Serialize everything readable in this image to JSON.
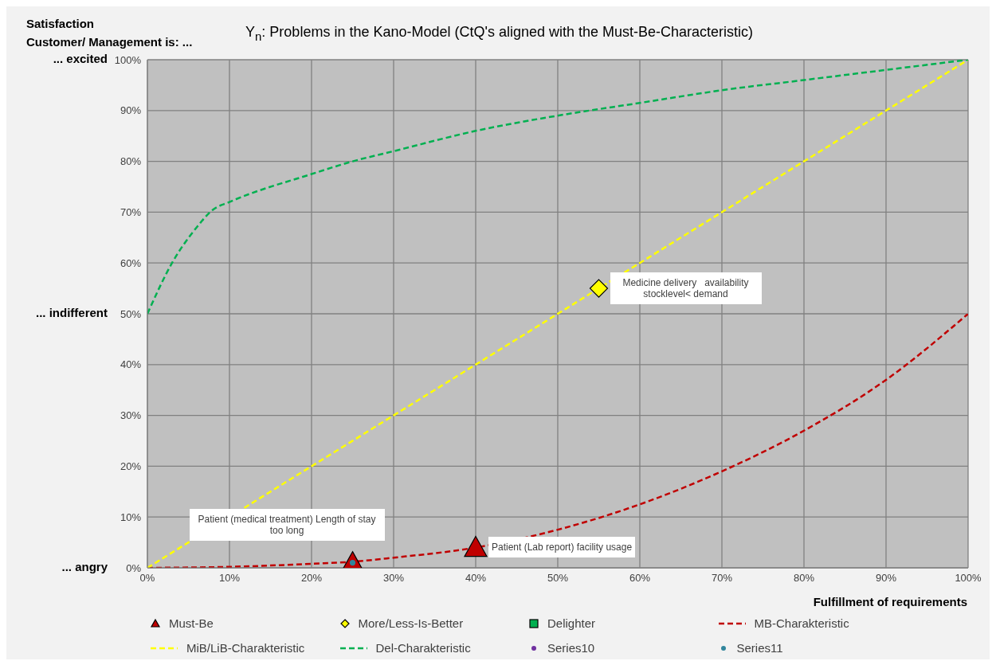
{
  "chart_data": {
    "type": "line",
    "title": "Y$_{n}$: Problems in the Kano-Model (CtQ's aligned with the Must-Be-Characteristic)",
    "ylabel": "Satisfaction\nCustomer/ Management is: ...",
    "xlabel": "Fulfillment of requirements",
    "xlim": [
      0,
      100
    ],
    "ylim": [
      0,
      100
    ],
    "xticks": [
      {
        "value": 0,
        "label": "0%"
      },
      {
        "value": 10,
        "label": "10%"
      },
      {
        "value": 20,
        "label": "20%"
      },
      {
        "value": 30,
        "label": "30%"
      },
      {
        "value": 40,
        "label": "40%"
      },
      {
        "value": 50,
        "label": "50%"
      },
      {
        "value": 60,
        "label": "60%"
      },
      {
        "value": 70,
        "label": "70%"
      },
      {
        "value": 80,
        "label": "80%"
      },
      {
        "value": 90,
        "label": "90%"
      },
      {
        "value": 100,
        "label": "100%"
      }
    ],
    "yticks": [
      {
        "value": 0,
        "label": "0%"
      },
      {
        "value": 10,
        "label": "10%"
      },
      {
        "value": 20,
        "label": "20%"
      },
      {
        "value": 30,
        "label": "30%"
      },
      {
        "value": 40,
        "label": "40%"
      },
      {
        "value": 50,
        "label": "50%"
      },
      {
        "value": 60,
        "label": "60%"
      },
      {
        "value": 70,
        "label": "70%"
      },
      {
        "value": 80,
        "label": "80%"
      },
      {
        "value": 90,
        "label": "90%"
      },
      {
        "value": 100,
        "label": "100%"
      }
    ],
    "grid": true,
    "legend": "bottom",
    "series": [
      {
        "name": "Must-Be",
        "type": "scatter",
        "marker": "triangle",
        "color": "#c00000",
        "x": [
          25,
          40
        ],
        "values": [
          1,
          4
        ]
      },
      {
        "name": "More/Less-Is-Better",
        "type": "scatter",
        "marker": "diamond",
        "color": "#ffff00",
        "x": [
          55
        ],
        "values": [
          55
        ]
      },
      {
        "name": "Delighter",
        "type": "scatter",
        "marker": "square",
        "color": "#00b050"
      },
      {
        "name": "MB-Charakteristic",
        "line_style": "dashed",
        "marker": "none",
        "color": "#c00000",
        "x": [
          0,
          10,
          20,
          25,
          30,
          40,
          50,
          60,
          70,
          80,
          90,
          100
        ],
        "values": [
          0,
          0.2,
          0.8,
          1.2,
          2,
          4,
          7.5,
          12.5,
          19,
          27,
          37,
          50
        ]
      },
      {
        "name": "MiB/LiB-Charakteristic",
        "line_style": "dashed",
        "marker": "none",
        "color": "#ffff00",
        "x": [
          0,
          100
        ],
        "values": [
          0,
          100
        ]
      },
      {
        "name": "Del-Charakteristic",
        "line_style": "dashed",
        "marker": "none",
        "color": "#00b050",
        "x": [
          0,
          3,
          6,
          8,
          10,
          20,
          25,
          30,
          40,
          50,
          60,
          70,
          80,
          90,
          100
        ],
        "values": [
          50,
          60,
          67,
          70.5,
          72,
          77.5,
          80,
          82,
          86,
          89,
          91.5,
          94,
          96,
          98,
          100
        ]
      },
      {
        "name": "Series10",
        "type": "scatter",
        "marker": "circle",
        "color": "#7030a0"
      },
      {
        "name": "Series11",
        "type": "scatter",
        "marker": "circle",
        "color": "#31859c",
        "x": [
          25
        ],
        "values": [
          1
        ]
      }
    ],
    "annotations": [
      "... excited",
      "... indifferent",
      "... angry",
      {
        "text": "Patient (medical treatment) Length of stay too long",
        "x": 25,
        "y": 1
      },
      {
        "text": "Patient (Lab report) facility usage",
        "x": 40,
        "y": 4
      },
      {
        "text": "Medicine delivery   availability stocklevel< demand",
        "x": 55,
        "y": 55
      }
    ]
  }
}
